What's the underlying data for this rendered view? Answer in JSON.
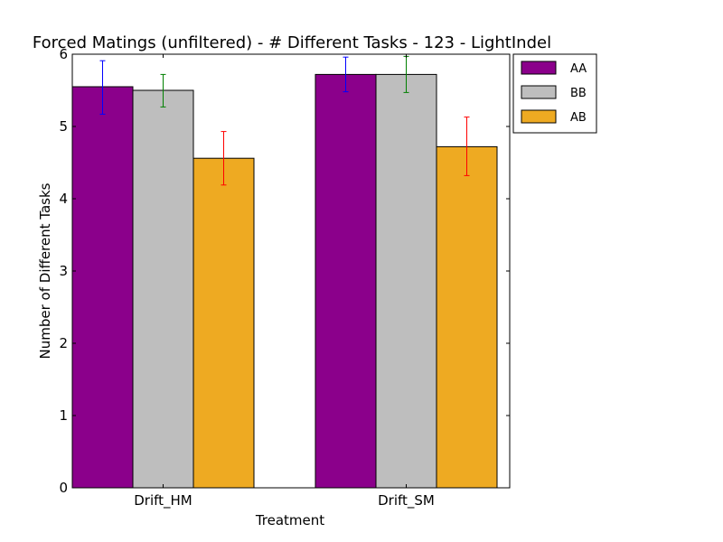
{
  "chart_data": {
    "type": "bar",
    "title": "Forced Matings (unfiltered) - # Different Tasks - 123 - LightIndel",
    "xlabel": "Treatment",
    "ylabel": "Number of Different Tasks",
    "ylim": [
      0,
      6
    ],
    "yticks": [
      "0",
      "1",
      "2",
      "3",
      "4",
      "5",
      "6"
    ],
    "categories": [
      "Drift_HM",
      "Drift_SM"
    ],
    "series": [
      {
        "name": "AA",
        "color": "#8b008b",
        "error_color": "#0000ff",
        "values": [
          5.55,
          5.72
        ],
        "err_low": [
          5.17,
          5.48
        ],
        "err_high": [
          5.91,
          5.96
        ]
      },
      {
        "name": "BB",
        "color": "#bebebe",
        "error_color": "#008000",
        "values": [
          5.5,
          5.72
        ],
        "err_low": [
          5.27,
          5.47
        ],
        "err_high": [
          5.72,
          5.97
        ]
      },
      {
        "name": "AB",
        "color": "#eeaa22",
        "error_color": "#ff0000",
        "values": [
          4.56,
          4.72
        ],
        "err_low": [
          4.19,
          4.32
        ],
        "err_high": [
          4.93,
          5.13
        ]
      }
    ],
    "legend": {
      "position": "outside-top-right"
    }
  }
}
